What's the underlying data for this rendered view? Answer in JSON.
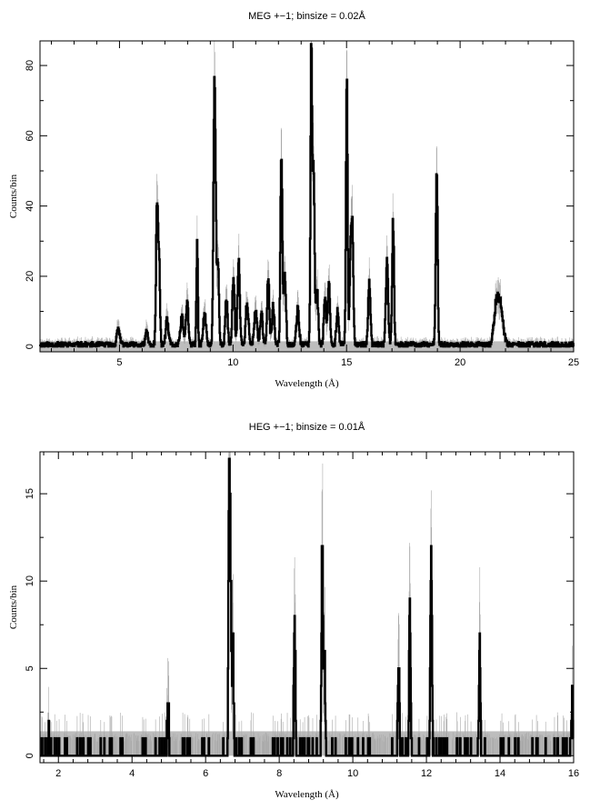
{
  "chart_data": [
    {
      "type": "line",
      "title": "MEG +−1; binsize = 0.02Å",
      "xlabel": "Wavelength (Å)",
      "ylabel": "Counts/bin",
      "xlim": [
        1.5,
        25
      ],
      "ylim": [
        -1.5,
        87
      ],
      "xticks": [
        5,
        10,
        15,
        20,
        25
      ],
      "xtick_labels": [
        "5",
        "10",
        "15",
        "20",
        "25"
      ],
      "yticks": [
        0,
        20,
        40,
        60,
        80
      ],
      "ytick_labels": [
        "0",
        "20",
        "40",
        "60",
        "80"
      ],
      "background_band": [
        -1.5,
        1.5
      ],
      "baseline_level": 0.5,
      "series": [
        {
          "style": "histogram-step",
          "features": [
            {
              "x": 4.95,
              "y": 5,
              "w": 0.06
            },
            {
              "x": 6.2,
              "y": 4,
              "w": 0.05
            },
            {
              "x": 6.65,
              "y": 39,
              "w": 0.04
            },
            {
              "x": 6.74,
              "y": 25,
              "w": 0.04
            },
            {
              "x": 7.1,
              "y": 7,
              "w": 0.06
            },
            {
              "x": 7.75,
              "y": 8,
              "w": 0.06
            },
            {
              "x": 7.98,
              "y": 13,
              "w": 0.05
            },
            {
              "x": 8.42,
              "y": 29,
              "w": 0.03
            },
            {
              "x": 8.75,
              "y": 9,
              "w": 0.06
            },
            {
              "x": 9.17,
              "y": 60,
              "w": 0.04
            },
            {
              "x": 9.23,
              "y": 35,
              "w": 0.04
            },
            {
              "x": 9.34,
              "y": 24,
              "w": 0.04
            },
            {
              "x": 9.71,
              "y": 13,
              "w": 0.05
            },
            {
              "x": 10.02,
              "y": 19,
              "w": 0.05
            },
            {
              "x": 10.25,
              "y": 24,
              "w": 0.05
            },
            {
              "x": 10.62,
              "y": 12,
              "w": 0.06
            },
            {
              "x": 11.0,
              "y": 10,
              "w": 0.06
            },
            {
              "x": 11.25,
              "y": 9,
              "w": 0.05
            },
            {
              "x": 11.55,
              "y": 19,
              "w": 0.05
            },
            {
              "x": 11.77,
              "y": 11,
              "w": 0.05
            },
            {
              "x": 12.13,
              "y": 56,
              "w": 0.04
            },
            {
              "x": 12.28,
              "y": 21,
              "w": 0.05
            },
            {
              "x": 12.85,
              "y": 10,
              "w": 0.06
            },
            {
              "x": 13.45,
              "y": 85,
              "w": 0.035
            },
            {
              "x": 13.55,
              "y": 51,
              "w": 0.04
            },
            {
              "x": 13.7,
              "y": 16,
              "w": 0.05
            },
            {
              "x": 14.05,
              "y": 13,
              "w": 0.05
            },
            {
              "x": 14.22,
              "y": 18,
              "w": 0.05
            },
            {
              "x": 14.6,
              "y": 10,
              "w": 0.05
            },
            {
              "x": 15.01,
              "y": 76,
              "w": 0.035
            },
            {
              "x": 15.18,
              "y": 28,
              "w": 0.04
            },
            {
              "x": 15.26,
              "y": 32,
              "w": 0.04
            },
            {
              "x": 16.0,
              "y": 18,
              "w": 0.05
            },
            {
              "x": 16.78,
              "y": 24,
              "w": 0.05
            },
            {
              "x": 17.05,
              "y": 35,
              "w": 0.04
            },
            {
              "x": 18.97,
              "y": 52,
              "w": 0.04
            },
            {
              "x": 21.6,
              "y": 12,
              "w": 0.1
            },
            {
              "x": 21.8,
              "y": 10,
              "w": 0.1
            }
          ]
        }
      ]
    },
    {
      "type": "line",
      "title": "HEG +−1; binsize = 0.01Å",
      "xlabel": "Wavelength (Å)",
      "ylabel": "Counts/bin",
      "xlim": [
        1.5,
        16
      ],
      "ylim": [
        -0.4,
        17.4
      ],
      "xticks": [
        2,
        4,
        6,
        8,
        10,
        12,
        14,
        16
      ],
      "xtick_labels": [
        "2",
        "4",
        "6",
        "8",
        "10",
        "12",
        "14",
        "16"
      ],
      "yticks": [
        0,
        5,
        10,
        15
      ],
      "ytick_labels": [
        "0",
        "5",
        "10",
        "15"
      ],
      "background_band": [
        0,
        1.4
      ],
      "baseline_level": 0,
      "series": [
        {
          "style": "histogram-step",
          "features": [
            {
              "x": 1.75,
              "y": 1,
              "w": 0.02
            },
            {
              "x": 4.98,
              "y": 3,
              "w": 0.02
            },
            {
              "x": 6.64,
              "y": 17,
              "w": 0.02
            },
            {
              "x": 6.68,
              "y": 9,
              "w": 0.02
            },
            {
              "x": 6.74,
              "y": 7,
              "w": 0.02
            },
            {
              "x": 8.42,
              "y": 8,
              "w": 0.02
            },
            {
              "x": 9.17,
              "y": 13,
              "w": 0.02
            },
            {
              "x": 9.23,
              "y": 6,
              "w": 0.02
            },
            {
              "x": 11.25,
              "y": 6,
              "w": 0.02
            },
            {
              "x": 11.55,
              "y": 8,
              "w": 0.02
            },
            {
              "x": 12.13,
              "y": 13,
              "w": 0.02
            },
            {
              "x": 13.45,
              "y": 6,
              "w": 0.02
            },
            {
              "x": 15.96,
              "y": 3,
              "w": 0.02
            }
          ]
        }
      ]
    }
  ]
}
